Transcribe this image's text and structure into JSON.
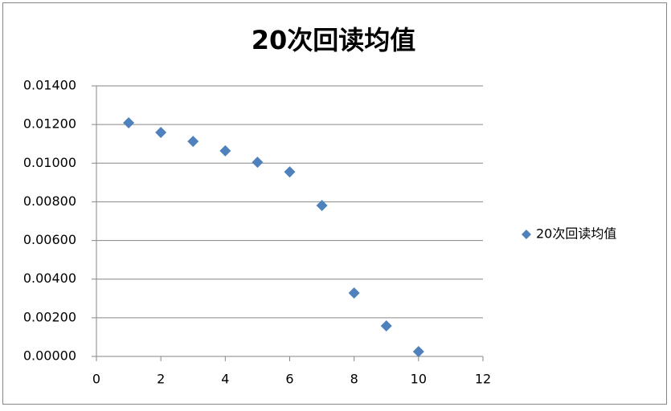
{
  "chart_data": {
    "type": "scatter",
    "title": "20次回读均值",
    "series": [
      {
        "name": "20次回读均值",
        "color": "#4f81bd",
        "x": [
          1,
          2,
          3,
          4,
          5,
          6,
          7,
          8,
          9,
          10
        ],
        "values": [
          0.01209,
          0.01159,
          0.01113,
          0.01064,
          0.01005,
          0.00955,
          0.00781,
          0.00328,
          0.00158,
          0.00025
        ]
      }
    ],
    "xlim": [
      0,
      12
    ],
    "xticks": [
      0,
      2,
      4,
      6,
      8,
      10,
      12
    ],
    "ylim": [
      0,
      0.014
    ],
    "yticks": [
      {
        "value": 0,
        "label": "0.00000"
      },
      {
        "value": 0.002,
        "label": "0.00200"
      },
      {
        "value": 0.004,
        "label": "0.00400"
      },
      {
        "value": 0.006,
        "label": "0.00600"
      },
      {
        "value": 0.008,
        "label": "0.00800"
      },
      {
        "value": 0.01,
        "label": "0.01000"
      },
      {
        "value": 0.012,
        "label": "0.01200"
      },
      {
        "value": 0.014,
        "label": "0.01400"
      }
    ],
    "grid": true,
    "legend": "right"
  }
}
